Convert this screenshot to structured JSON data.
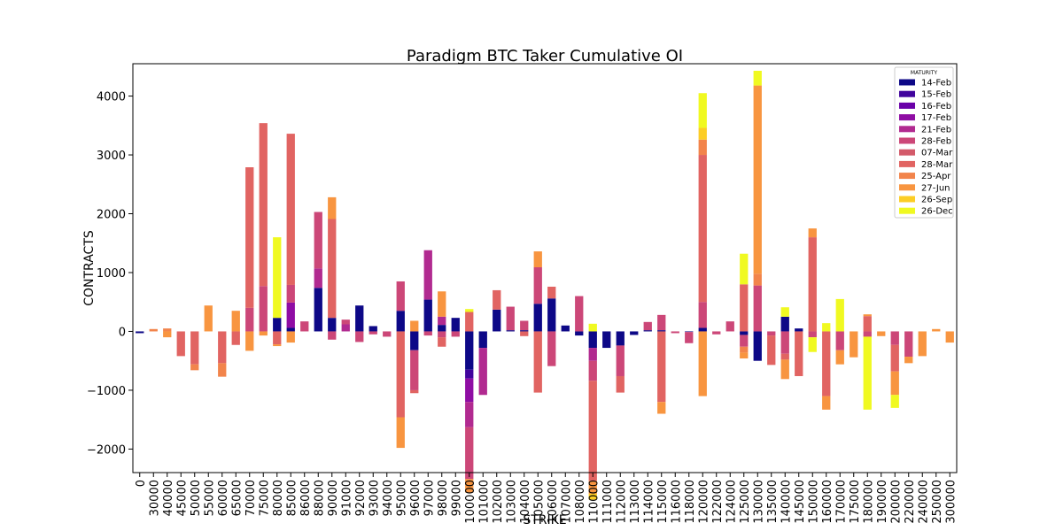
{
  "chart_data": {
    "type": "bar",
    "stacked": true,
    "title": "Paradigm BTC Taker Cumulative OI",
    "xlabel": "STRIKE",
    "ylabel": "CONTRACTS",
    "ylim": [
      -2400,
      4550
    ],
    "yticks": [
      -2000,
      -1000,
      0,
      1000,
      2000,
      3000,
      4000
    ],
    "ytick_labels": [
      "−2000",
      "−1000",
      "0",
      "1000",
      "2000",
      "3000",
      "4000"
    ],
    "grid": false,
    "legend_title": "MATURITY",
    "legend_position": "top-right",
    "categories": [
      "0",
      "30000",
      "40000",
      "45000",
      "50000",
      "55000",
      "60000",
      "65000",
      "70000",
      "75000",
      "80000",
      "85000",
      "86000",
      "88000",
      "90000",
      "91000",
      "92000",
      "93000",
      "94000",
      "95000",
      "96000",
      "97000",
      "98000",
      "99000",
      "100000",
      "101000",
      "102000",
      "103000",
      "104000",
      "105000",
      "106000",
      "107000",
      "108000",
      "110000",
      "111000",
      "112000",
      "113000",
      "114000",
      "115000",
      "116000",
      "118000",
      "120000",
      "122000",
      "124000",
      "125000",
      "130000",
      "135000",
      "140000",
      "145000",
      "150000",
      "160000",
      "170000",
      "175000",
      "180000",
      "190000",
      "200000",
      "220000",
      "240000",
      "250000",
      "300000"
    ],
    "series": [
      {
        "name": "14-Feb",
        "color": "#0d0887",
        "values": [
          -30,
          0,
          0,
          0,
          0,
          0,
          0,
          0,
          0,
          0,
          230,
          60,
          0,
          740,
          230,
          0,
          440,
          90,
          0,
          350,
          -320,
          540,
          110,
          230,
          -650,
          -280,
          370,
          20,
          20,
          470,
          560,
          100,
          -70,
          -280,
          -280,
          -240,
          -60,
          20,
          20,
          0,
          -10,
          60,
          0,
          0,
          -60,
          -500,
          0,
          250,
          50,
          0,
          0,
          0,
          0,
          0,
          0,
          0,
          0,
          0,
          0,
          0
        ]
      },
      {
        "name": "15-Feb",
        "color": "#41049d",
        "values": [
          0,
          0,
          0,
          0,
          0,
          0,
          0,
          0,
          0,
          0,
          0,
          0,
          0,
          0,
          0,
          0,
          0,
          0,
          0,
          0,
          0,
          0,
          0,
          0,
          -150,
          0,
          0,
          0,
          0,
          0,
          0,
          0,
          0,
          0,
          0,
          0,
          0,
          0,
          0,
          0,
          0,
          0,
          0,
          0,
          0,
          0,
          0,
          0,
          0,
          0,
          0,
          0,
          0,
          0,
          0,
          0,
          0,
          0,
          0,
          0
        ]
      },
      {
        "name": "16-Feb",
        "color": "#6a00a8",
        "values": [
          0,
          0,
          0,
          0,
          0,
          0,
          0,
          0,
          0,
          0,
          0,
          0,
          0,
          0,
          0,
          0,
          0,
          0,
          0,
          0,
          0,
          0,
          0,
          0,
          0,
          0,
          0,
          0,
          0,
          0,
          0,
          0,
          0,
          0,
          0,
          0,
          0,
          0,
          0,
          0,
          0,
          0,
          0,
          0,
          0,
          0,
          0,
          0,
          0,
          0,
          0,
          0,
          0,
          0,
          0,
          0,
          0,
          0,
          0,
          0
        ]
      },
      {
        "name": "17-Feb",
        "color": "#8f0da4",
        "values": [
          0,
          0,
          0,
          0,
          0,
          0,
          0,
          0,
          0,
          0,
          0,
          430,
          0,
          0,
          0,
          0,
          0,
          0,
          0,
          0,
          0,
          0,
          0,
          0,
          -400,
          0,
          0,
          0,
          0,
          0,
          0,
          0,
          0,
          0,
          0,
          0,
          0,
          0,
          0,
          0,
          0,
          0,
          0,
          0,
          0,
          0,
          0,
          0,
          0,
          0,
          0,
          0,
          0,
          0,
          0,
          0,
          0,
          0,
          0,
          0
        ]
      },
      {
        "name": "21-Feb",
        "color": "#b12a90",
        "values": [
          0,
          0,
          0,
          0,
          0,
          0,
          0,
          0,
          0,
          0,
          0,
          0,
          0,
          330,
          0,
          120,
          0,
          0,
          0,
          0,
          0,
          840,
          140,
          0,
          -430,
          -800,
          0,
          0,
          0,
          0,
          0,
          0,
          0,
          -220,
          0,
          0,
          0,
          0,
          0,
          0,
          0,
          0,
          0,
          0,
          0,
          0,
          0,
          0,
          0,
          0,
          0,
          0,
          0,
          0,
          0,
          0,
          0,
          0,
          0,
          0
        ]
      },
      {
        "name": "28-Feb",
        "color": "#cc4778",
        "values": [
          0,
          0,
          0,
          0,
          0,
          0,
          0,
          0,
          400,
          770,
          0,
          300,
          170,
          960,
          -140,
          80,
          -180,
          -50,
          -90,
          500,
          -680,
          -70,
          -100,
          -90,
          -880,
          0,
          0,
          400,
          160,
          620,
          -590,
          0,
          600,
          -340,
          0,
          -520,
          0,
          140,
          260,
          -30,
          -190,
          440,
          -50,
          170,
          -200,
          780,
          -70,
          -380,
          0,
          -100,
          0,
          -320,
          0,
          -90,
          0,
          -230,
          -430,
          0,
          0,
          0
        ]
      },
      {
        "name": "07-Mar",
        "color": "#d35a6a",
        "values": [
          0,
          0,
          0,
          0,
          0,
          0,
          0,
          0,
          0,
          0,
          0,
          0,
          0,
          0,
          0,
          0,
          0,
          0,
          0,
          0,
          0,
          0,
          0,
          0,
          0,
          0,
          0,
          0,
          0,
          0,
          0,
          0,
          0,
          0,
          0,
          0,
          0,
          0,
          0,
          0,
          0,
          0,
          0,
          0,
          0,
          0,
          0,
          0,
          0,
          0,
          0,
          0,
          0,
          0,
          0,
          0,
          0,
          0,
          0,
          0
        ]
      },
      {
        "name": "28-Mar",
        "color": "#e16462",
        "values": [
          0,
          0,
          0,
          -420,
          -560,
          0,
          -540,
          -230,
          2390,
          2770,
          -220,
          2570,
          0,
          0,
          1680,
          0,
          0,
          0,
          0,
          -1460,
          -50,
          0,
          -160,
          0,
          330,
          0,
          330,
          0,
          -80,
          -1040,
          200,
          0,
          0,
          -1700,
          0,
          -280,
          0,
          0,
          -1200,
          0,
          0,
          2500,
          0,
          0,
          800,
          0,
          -500,
          -100,
          -760,
          1600,
          -1100,
          0,
          0,
          260,
          0,
          -450,
          0,
          0,
          0,
          0
        ]
      },
      {
        "name": "25-Apr",
        "color": "#f2844b",
        "values": [
          0,
          40,
          50,
          0,
          -100,
          0,
          -230,
          0,
          0,
          0,
          0,
          0,
          0,
          0,
          0,
          0,
          0,
          0,
          0,
          0,
          0,
          0,
          0,
          0,
          0,
          0,
          0,
          0,
          0,
          0,
          0,
          0,
          0,
          0,
          0,
          0,
          0,
          0,
          0,
          0,
          0,
          260,
          0,
          0,
          -100,
          200,
          0,
          0,
          0,
          0,
          0,
          0,
          0,
          0,
          0,
          0,
          0,
          0,
          0,
          0
        ]
      },
      {
        "name": "27-Jun",
        "color": "#f89540",
        "values": [
          0,
          0,
          -100,
          0,
          0,
          440,
          0,
          350,
          -330,
          -70,
          -30,
          -190,
          0,
          0,
          370,
          0,
          0,
          0,
          0,
          -520,
          180,
          0,
          430,
          0,
          -230,
          0,
          0,
          0,
          0,
          270,
          0,
          0,
          0,
          -220,
          0,
          0,
          0,
          0,
          -200,
          0,
          0,
          -1100,
          0,
          0,
          -100,
          3200,
          0,
          -330,
          0,
          150,
          -230,
          -240,
          -440,
          30,
          -80,
          -400,
          -110,
          -420,
          40,
          -190
        ]
      },
      {
        "name": "26-Sep",
        "color": "#fccd25",
        "values": [
          0,
          0,
          0,
          0,
          0,
          0,
          0,
          0,
          0,
          0,
          0,
          0,
          0,
          0,
          0,
          0,
          0,
          0,
          0,
          0,
          0,
          0,
          0,
          0,
          0,
          0,
          0,
          0,
          0,
          0,
          0,
          0,
          0,
          -100,
          0,
          0,
          0,
          0,
          0,
          0,
          0,
          200,
          0,
          0,
          0,
          0,
          0,
          0,
          0,
          0,
          0,
          0,
          0,
          0,
          0,
          0,
          0,
          0,
          0,
          0
        ]
      },
      {
        "name": "26-Dec",
        "color": "#f0f921",
        "values": [
          0,
          0,
          0,
          0,
          0,
          0,
          0,
          0,
          0,
          0,
          1370,
          0,
          0,
          0,
          0,
          0,
          0,
          0,
          0,
          0,
          0,
          0,
          0,
          0,
          50,
          0,
          0,
          0,
          0,
          0,
          0,
          0,
          0,
          130,
          0,
          0,
          0,
          0,
          0,
          0,
          0,
          590,
          0,
          0,
          520,
          250,
          0,
          160,
          0,
          -250,
          140,
          550,
          0,
          -1240,
          0,
          -220,
          0,
          0,
          0,
          0
        ]
      }
    ]
  }
}
